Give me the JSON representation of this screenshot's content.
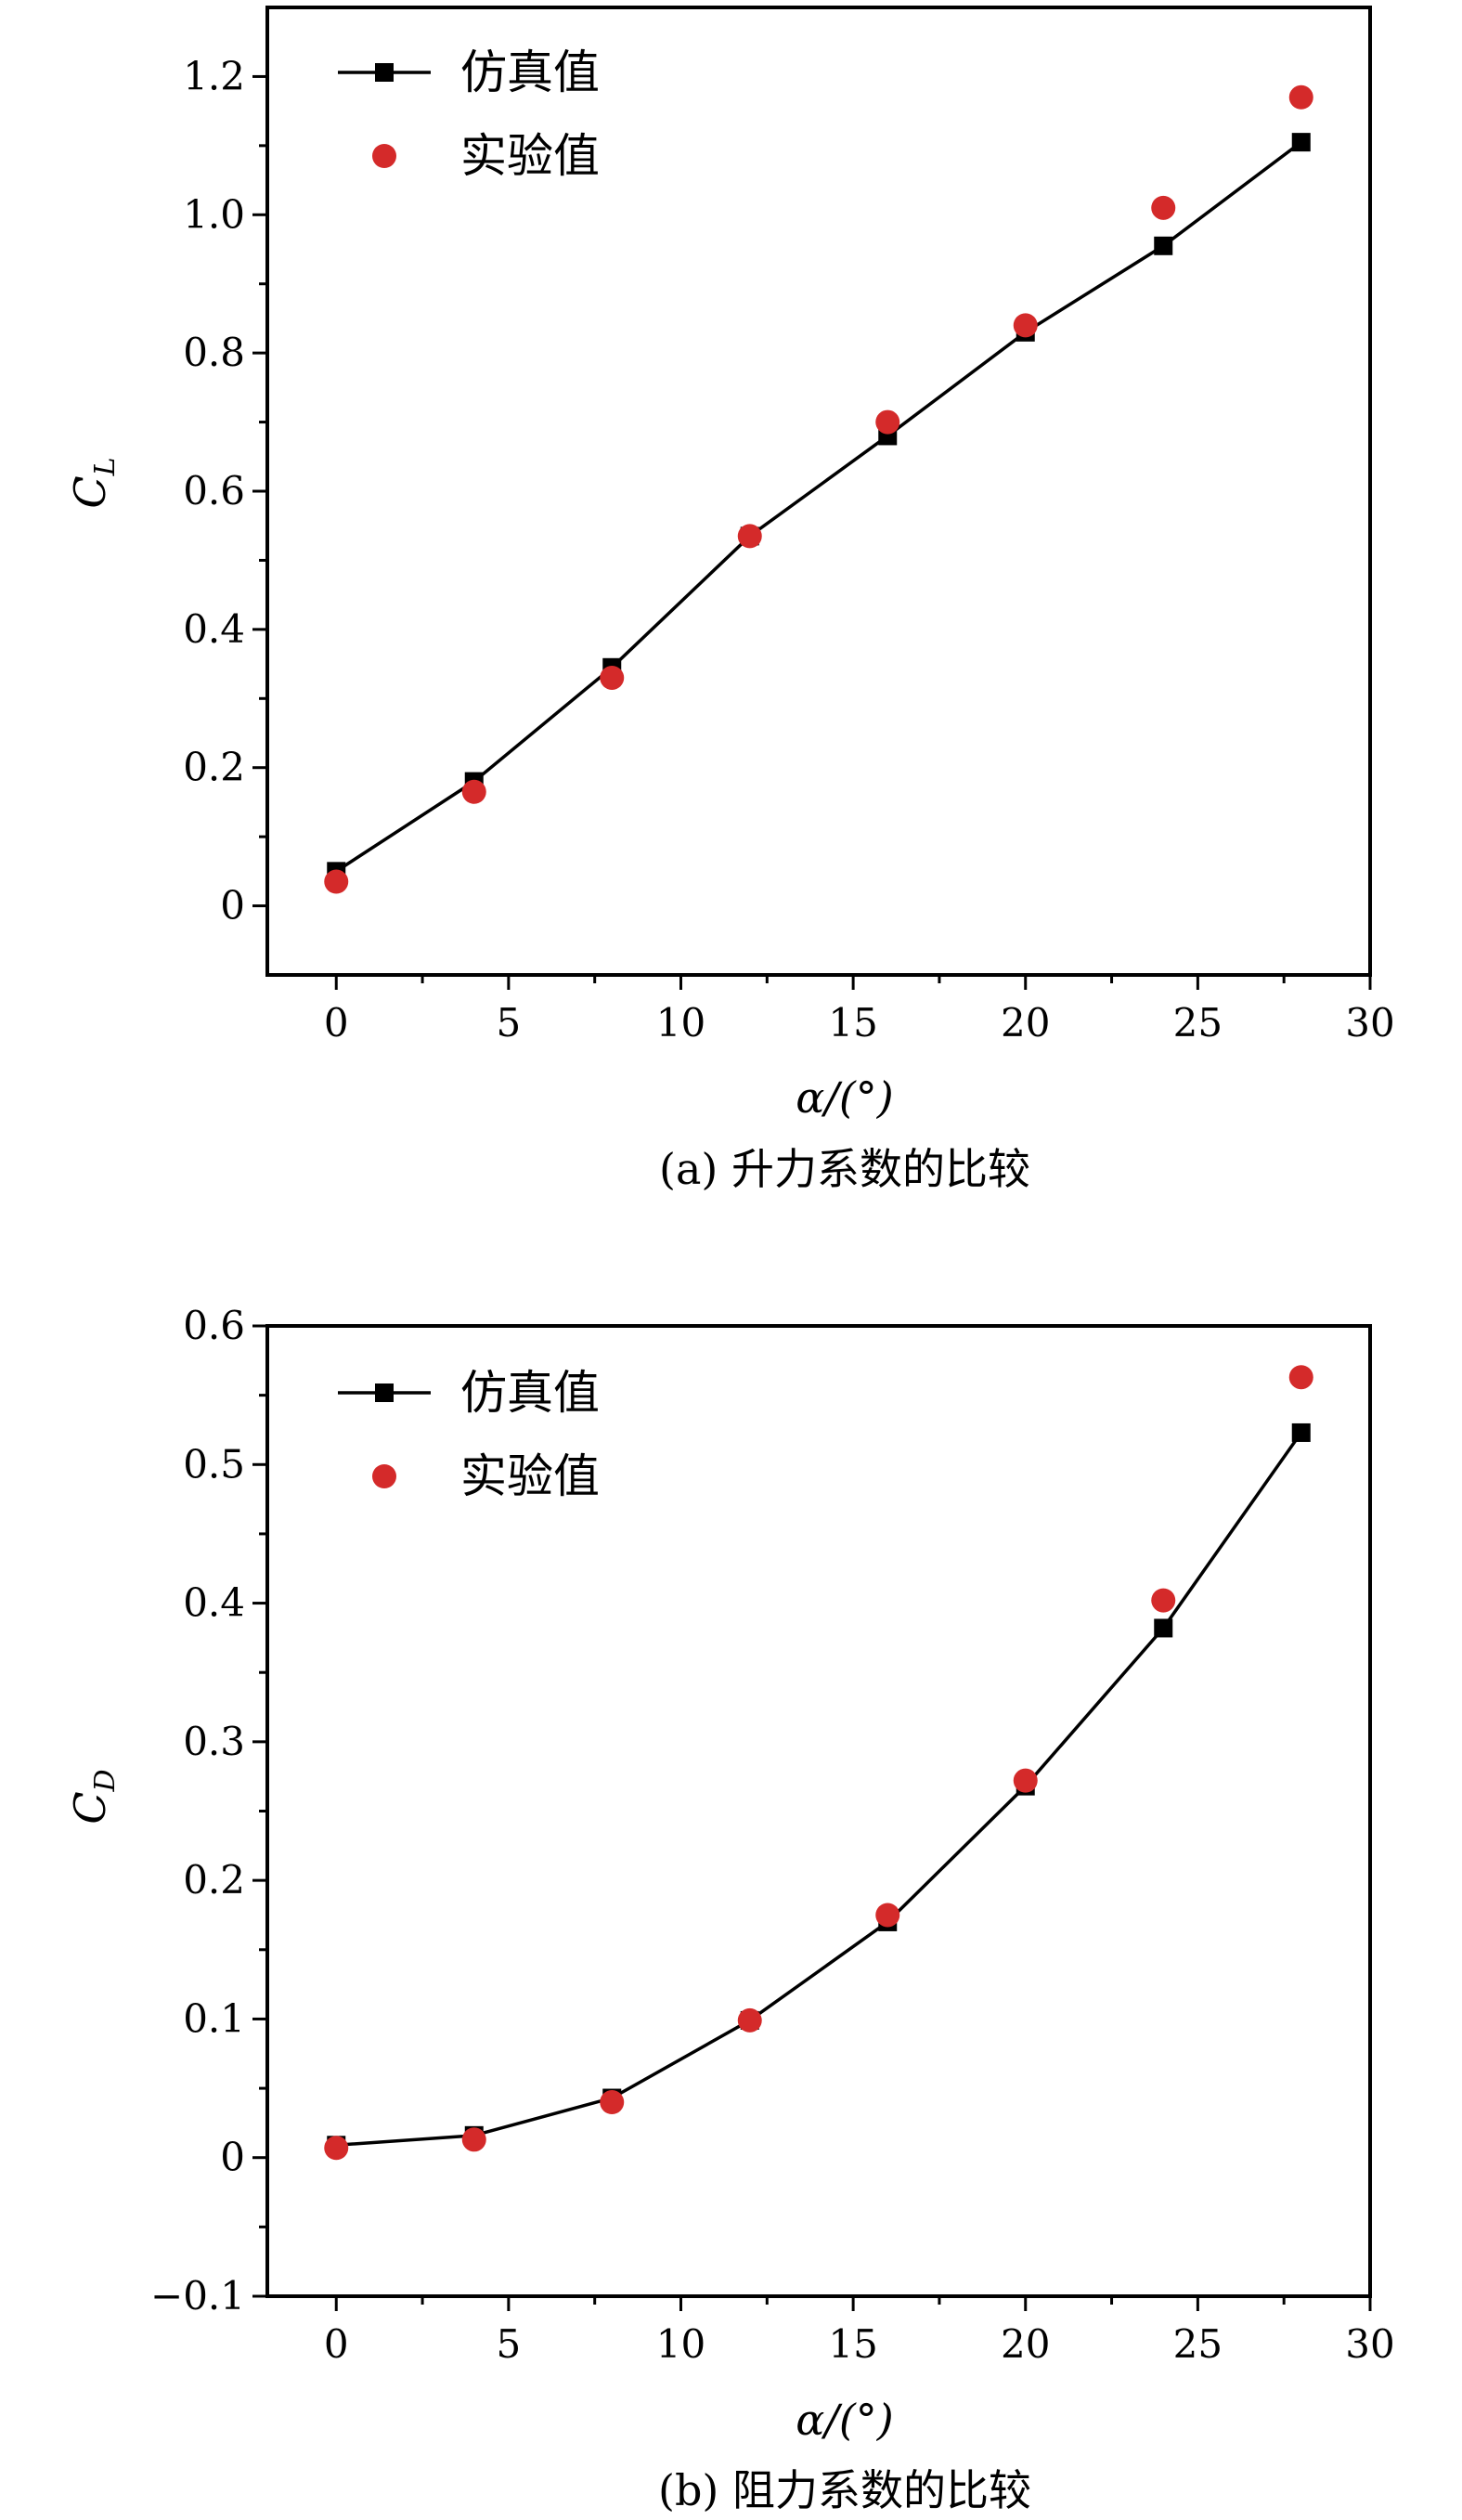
{
  "figure": {
    "panels": [
      {
        "caption": "(a) 升力系数的比较",
        "ylabel_main": "C",
        "ylabel_sub": "L"
      },
      {
        "caption": "(b) 阻力系数的比较",
        "ylabel_main": "C",
        "ylabel_sub": "D"
      }
    ]
  },
  "chart_data": [
    {
      "type": "line",
      "caption": "(a) 升力系数的比较",
      "xlabel": "α/(°)",
      "ylabel": "C_L",
      "xlim": [
        -2,
        30
      ],
      "ylim": [
        -0.1,
        1.3
      ],
      "xticks": [
        0,
        5,
        10,
        15,
        20,
        25,
        30
      ],
      "xtick_labels": [
        "0",
        "5",
        "10",
        "15",
        "20",
        "25",
        "30"
      ],
      "yticks": [
        0,
        0.2,
        0.4,
        0.6,
        0.8,
        1.0,
        1.2
      ],
      "ytick_labels": [
        "0",
        "0.2",
        "0.4",
        "0.6",
        "0.8",
        "1.0",
        "1.2"
      ],
      "legend_position": "top-left",
      "grid": false,
      "series": [
        {
          "name": "仿真值",
          "style": "line-square",
          "color": "#000000",
          "x": [
            0,
            4,
            8,
            12,
            16,
            20,
            24,
            28
          ],
          "y": [
            0.05,
            0.18,
            0.345,
            0.535,
            0.68,
            0.83,
            0.955,
            1.105
          ]
        },
        {
          "name": "实验值",
          "style": "circle",
          "color": "#d42a2a",
          "x": [
            0,
            4,
            8,
            12,
            16,
            20,
            24,
            28
          ],
          "y": [
            0.035,
            0.165,
            0.33,
            0.535,
            0.7,
            0.84,
            1.01,
            1.17
          ]
        }
      ]
    },
    {
      "type": "line",
      "caption": "(b) 阻力系数的比较",
      "xlabel": "α/(°)",
      "ylabel": "C_D",
      "xlim": [
        -2,
        30
      ],
      "ylim": [
        -0.1,
        0.6
      ],
      "xticks": [
        0,
        5,
        10,
        15,
        20,
        25,
        30
      ],
      "xtick_labels": [
        "0",
        "5",
        "10",
        "15",
        "20",
        "25",
        "30"
      ],
      "yticks": [
        -0.1,
        0,
        0.1,
        0.2,
        0.3,
        0.4,
        0.5,
        0.6
      ],
      "ytick_labels": [
        "−0.1",
        "0",
        "0.1",
        "0.2",
        "0.3",
        "0.4",
        "0.5",
        "0.6"
      ],
      "legend_position": "top-left",
      "grid": false,
      "series": [
        {
          "name": "仿真值",
          "style": "line-square",
          "color": "#000000",
          "x": [
            0,
            4,
            8,
            12,
            16,
            20,
            24,
            28
          ],
          "y": [
            0.009,
            0.016,
            0.043,
            0.099,
            0.17,
            0.268,
            0.382,
            0.523
          ]
        },
        {
          "name": "实验值",
          "style": "circle",
          "color": "#d42a2a",
          "x": [
            0,
            4,
            8,
            12,
            16,
            20,
            24,
            28
          ],
          "y": [
            0.007,
            0.013,
            0.04,
            0.099,
            0.175,
            0.272,
            0.402,
            0.563
          ]
        }
      ]
    }
  ]
}
